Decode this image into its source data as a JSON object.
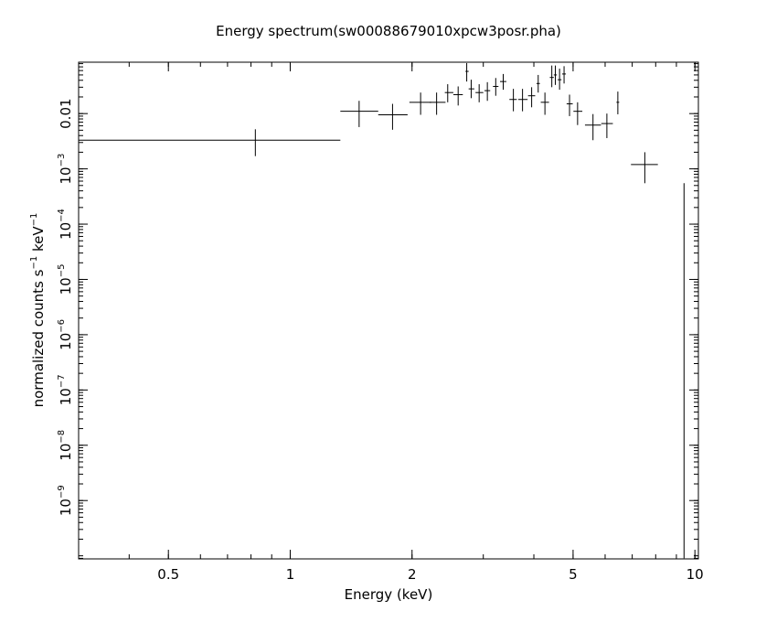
{
  "chart_data": {
    "type": "scatter",
    "title": "Energy spectrum(sw00088679010xpcw3posr.pha)",
    "xlabel": "Energy (keV)",
    "ylabel_parts": {
      "a": "normalized counts s",
      "sup1": "−1",
      "b": " keV",
      "sup2": "−1"
    },
    "x_scale": "log",
    "y_scale": "log",
    "xlim": [
      0.3,
      10.2
    ],
    "ylim": [
      8.8e-11,
      0.085
    ],
    "x_ticks": [
      {
        "value": 0.5,
        "label": "0.5"
      },
      {
        "value": 1,
        "label": "1"
      },
      {
        "value": 2,
        "label": "2"
      },
      {
        "value": 5,
        "label": "5"
      },
      {
        "value": 10,
        "label": "10"
      }
    ],
    "y_ticks": [
      {
        "value": 0.01,
        "label": "0.01",
        "base": "",
        "exp": ""
      },
      {
        "value": 0.001,
        "label": "",
        "base": "10",
        "exp": "−3"
      },
      {
        "value": 0.0001,
        "label": "",
        "base": "10",
        "exp": "−4"
      },
      {
        "value": 1e-05,
        "label": "",
        "base": "10",
        "exp": "−5"
      },
      {
        "value": 1e-06,
        "label": "",
        "base": "10",
        "exp": "−6"
      },
      {
        "value": 1e-07,
        "label": "",
        "base": "10",
        "exp": "−7"
      },
      {
        "value": 1e-08,
        "label": "",
        "base": "10",
        "exp": "−8"
      },
      {
        "value": 1e-09,
        "label": "",
        "base": "10",
        "exp": "−9"
      }
    ],
    "points": [
      {
        "x": 0.82,
        "xlo": 0.3,
        "xhi": 1.33,
        "y": 0.0033,
        "ylo": 0.0017,
        "yhi": 0.0052
      },
      {
        "x": 1.48,
        "xlo": 1.33,
        "xhi": 1.65,
        "y": 0.011,
        "ylo": 0.0057,
        "yhi": 0.017
      },
      {
        "x": 1.79,
        "xlo": 1.65,
        "xhi": 1.95,
        "y": 0.0095,
        "ylo": 0.0051,
        "yhi": 0.015
      },
      {
        "x": 2.1,
        "xlo": 1.97,
        "xhi": 2.23,
        "y": 0.016,
        "ylo": 0.0095,
        "yhi": 0.024
      },
      {
        "x": 2.3,
        "xlo": 2.21,
        "xhi": 2.42,
        "y": 0.016,
        "ylo": 0.0095,
        "yhi": 0.024
      },
      {
        "x": 2.45,
        "xlo": 2.41,
        "xhi": 2.53,
        "y": 0.024,
        "ylo": 0.016,
        "yhi": 0.034
      },
      {
        "x": 2.6,
        "xlo": 2.53,
        "xhi": 2.67,
        "y": 0.022,
        "ylo": 0.014,
        "yhi": 0.031
      },
      {
        "x": 2.73,
        "xlo": 2.71,
        "xhi": 2.76,
        "y": 0.058,
        "ylo": 0.038,
        "yhi": 0.082
      },
      {
        "x": 2.8,
        "xlo": 2.76,
        "xhi": 2.85,
        "y": 0.028,
        "ylo": 0.019,
        "yhi": 0.041
      },
      {
        "x": 2.93,
        "xlo": 2.87,
        "xhi": 3.0,
        "y": 0.024,
        "ylo": 0.016,
        "yhi": 0.034
      },
      {
        "x": 3.07,
        "xlo": 3.02,
        "xhi": 3.12,
        "y": 0.026,
        "ylo": 0.017,
        "yhi": 0.037
      },
      {
        "x": 3.22,
        "xlo": 3.17,
        "xhi": 3.27,
        "y": 0.031,
        "ylo": 0.021,
        "yhi": 0.044
      },
      {
        "x": 3.36,
        "xlo": 3.3,
        "xhi": 3.42,
        "y": 0.038,
        "ylo": 0.027,
        "yhi": 0.052
      },
      {
        "x": 3.56,
        "xlo": 3.48,
        "xhi": 3.63,
        "y": 0.018,
        "ylo": 0.011,
        "yhi": 0.028
      },
      {
        "x": 3.75,
        "xlo": 3.66,
        "xhi": 3.86,
        "y": 0.018,
        "ylo": 0.011,
        "yhi": 0.028
      },
      {
        "x": 3.95,
        "xlo": 3.87,
        "xhi": 4.03,
        "y": 0.021,
        "ylo": 0.013,
        "yhi": 0.03
      },
      {
        "x": 4.1,
        "xlo": 4.06,
        "xhi": 4.14,
        "y": 0.035,
        "ylo": 0.024,
        "yhi": 0.05
      },
      {
        "x": 4.26,
        "xlo": 4.16,
        "xhi": 4.36,
        "y": 0.016,
        "ylo": 0.0095,
        "yhi": 0.024
      },
      {
        "x": 4.43,
        "xlo": 4.38,
        "xhi": 4.48,
        "y": 0.045,
        "ylo": 0.03,
        "yhi": 0.074
      },
      {
        "x": 4.52,
        "xlo": 4.48,
        "xhi": 4.56,
        "y": 0.05,
        "ylo": 0.033,
        "yhi": 0.074
      },
      {
        "x": 4.63,
        "xlo": 4.58,
        "xhi": 4.68,
        "y": 0.041,
        "ylo": 0.027,
        "yhi": 0.065
      },
      {
        "x": 4.75,
        "xlo": 4.7,
        "xhi": 4.8,
        "y": 0.052,
        "ylo": 0.035,
        "yhi": 0.072
      },
      {
        "x": 4.9,
        "xlo": 4.82,
        "xhi": 4.99,
        "y": 0.015,
        "ylo": 0.009,
        "yhi": 0.022
      },
      {
        "x": 5.13,
        "xlo": 5.01,
        "xhi": 5.27,
        "y": 0.011,
        "ylo": 0.0062,
        "yhi": 0.016
      },
      {
        "x": 5.6,
        "xlo": 5.35,
        "xhi": 5.86,
        "y": 0.0062,
        "ylo": 0.0033,
        "yhi": 0.0098
      },
      {
        "x": 6.06,
        "xlo": 5.87,
        "xhi": 6.27,
        "y": 0.0066,
        "ylo": 0.0036,
        "yhi": 0.01
      },
      {
        "x": 6.45,
        "xlo": 6.4,
        "xhi": 6.5,
        "y": 0.016,
        "ylo": 0.0097,
        "yhi": 0.025
      },
      {
        "x": 7.52,
        "xlo": 6.95,
        "xhi": 8.1,
        "y": 0.0012,
        "ylo": 0.00055,
        "yhi": 0.002
      },
      {
        "x": 9.4,
        "xlo": 9.4,
        "xhi": 9.4,
        "y": 9e-11,
        "ylo": 9e-11,
        "yhi": 0.00055
      }
    ]
  }
}
